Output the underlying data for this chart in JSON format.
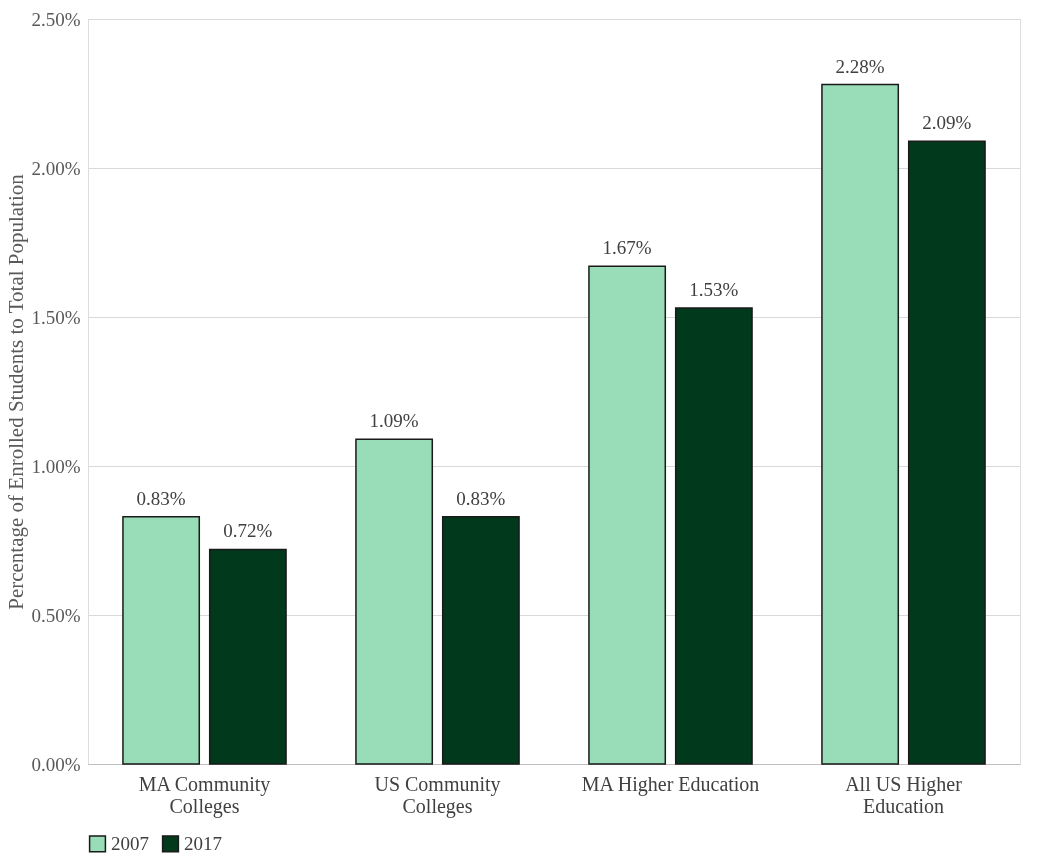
{
  "chart_data": {
    "type": "bar",
    "ylabel": "Percentage of Enrolled Students to Total Population",
    "categories": [
      "MA Community Colleges",
      "US Community Colleges",
      "MA Higher Education",
      "All US Higher Education"
    ],
    "series": [
      {
        "name": "2007",
        "color": "#98dcb8",
        "values": [
          0.83,
          1.09,
          1.67,
          2.28
        ],
        "value_labels": [
          "0.83%",
          "1.09%",
          "1.67%",
          "2.28%"
        ]
      },
      {
        "name": "2017",
        "color": "#00391c",
        "values": [
          0.72,
          0.83,
          1.53,
          2.09
        ],
        "value_labels": [
          "0.72%",
          "0.83%",
          "1.53%",
          "2.09%"
        ]
      }
    ],
    "ylim": [
      0,
      2.5
    ],
    "yticks": [
      {
        "value": 0,
        "label": "0.00%"
      },
      {
        "value": 0.5,
        "label": "0.50%"
      },
      {
        "value": 1.0,
        "label": "1.00%"
      },
      {
        "value": 1.5,
        "label": "1.50%"
      },
      {
        "value": 2.0,
        "label": "2.00%"
      },
      {
        "value": 2.5,
        "label": "2.50%"
      }
    ],
    "grid": "y",
    "legend": "bottom"
  }
}
